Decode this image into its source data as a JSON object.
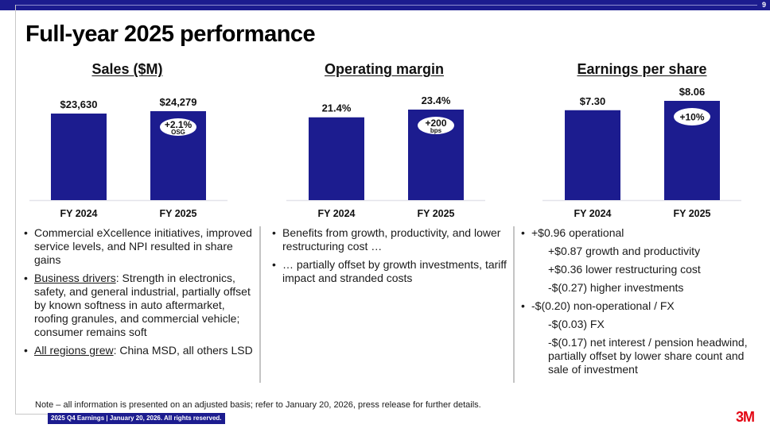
{
  "page": {
    "title": "Full-year 2025 performance",
    "page_number": "9",
    "note": "Note – all information is presented on an adjusted basis; refer to January 20, 2026, press release for further details.",
    "footer": "2025 Q4 Earnings | January 20, 2026. All rights reserved.",
    "logo": "3M",
    "bar_color": "#1c1c8f",
    "brand_red": "#e30613"
  },
  "chart_data": [
    {
      "type": "bar",
      "title": "Sales ($M)",
      "categories": [
        "FY 2024",
        "FY 2025"
      ],
      "values": [
        23630,
        24279
      ],
      "value_labels": [
        "$23,630",
        "$24,279"
      ],
      "badge": {
        "main": "+2.1%",
        "sub": "OSG"
      },
      "xlabel": "",
      "ylabel": "",
      "grid": false
    },
    {
      "type": "bar",
      "title": "Operating margin",
      "categories": [
        "FY 2024",
        "FY 2025"
      ],
      "values": [
        21.4,
        23.4
      ],
      "value_labels": [
        "21.4%",
        "23.4%"
      ],
      "badge": {
        "main": "+200",
        "sub": "bps"
      },
      "xlabel": "",
      "ylabel": "",
      "grid": false
    },
    {
      "type": "bar",
      "title": "Earnings per share",
      "categories": [
        "FY 2024",
        "FY 2025"
      ],
      "values": [
        7.3,
        8.06
      ],
      "value_labels": [
        "$7.30",
        "$8.06"
      ],
      "badge": {
        "main": "+10%",
        "sub": ""
      },
      "xlabel": "",
      "ylabel": "",
      "grid": false
    }
  ],
  "columns": {
    "sales": [
      {
        "level": 1,
        "underlined": "",
        "text": "Commercial eXcellence initiatives, improved service levels, and NPI resulted in share gains"
      },
      {
        "level": 1,
        "underlined": "Business drivers",
        "text": ": Strength in electronics, safety, and general industrial, partially offset by known softness in auto aftermarket, roofing granules, and commercial vehicle; consumer remains soft"
      },
      {
        "level": 1,
        "underlined": "All regions grew",
        "text": ": China MSD, all others LSD"
      }
    ],
    "margin": [
      {
        "level": 1,
        "underlined": "",
        "text": "Benefits from growth, productivity, and lower restructuring cost …"
      },
      {
        "level": 1,
        "underlined": "",
        "text": "… partially offset by growth investments, tariff impact and stranded costs"
      }
    ],
    "eps": [
      {
        "level": 1,
        "underlined": "",
        "text": "+$0.96 operational"
      },
      {
        "level": 2,
        "underlined": "",
        "text": "+$0.87 growth and productivity"
      },
      {
        "level": 2,
        "underlined": "",
        "text": "+$0.36 lower restructuring cost"
      },
      {
        "level": 2,
        "underlined": "",
        "text": "-$(0.27) higher investments"
      },
      {
        "level": 1,
        "underlined": "",
        "text": "-$(0.20) non-operational / FX"
      },
      {
        "level": 2,
        "underlined": "",
        "text": "-$(0.03) FX"
      },
      {
        "level": 2,
        "underlined": "",
        "text": "-$(0.17) net interest / pension headwind, partially offset by lower share count and sale of investment"
      }
    ]
  }
}
